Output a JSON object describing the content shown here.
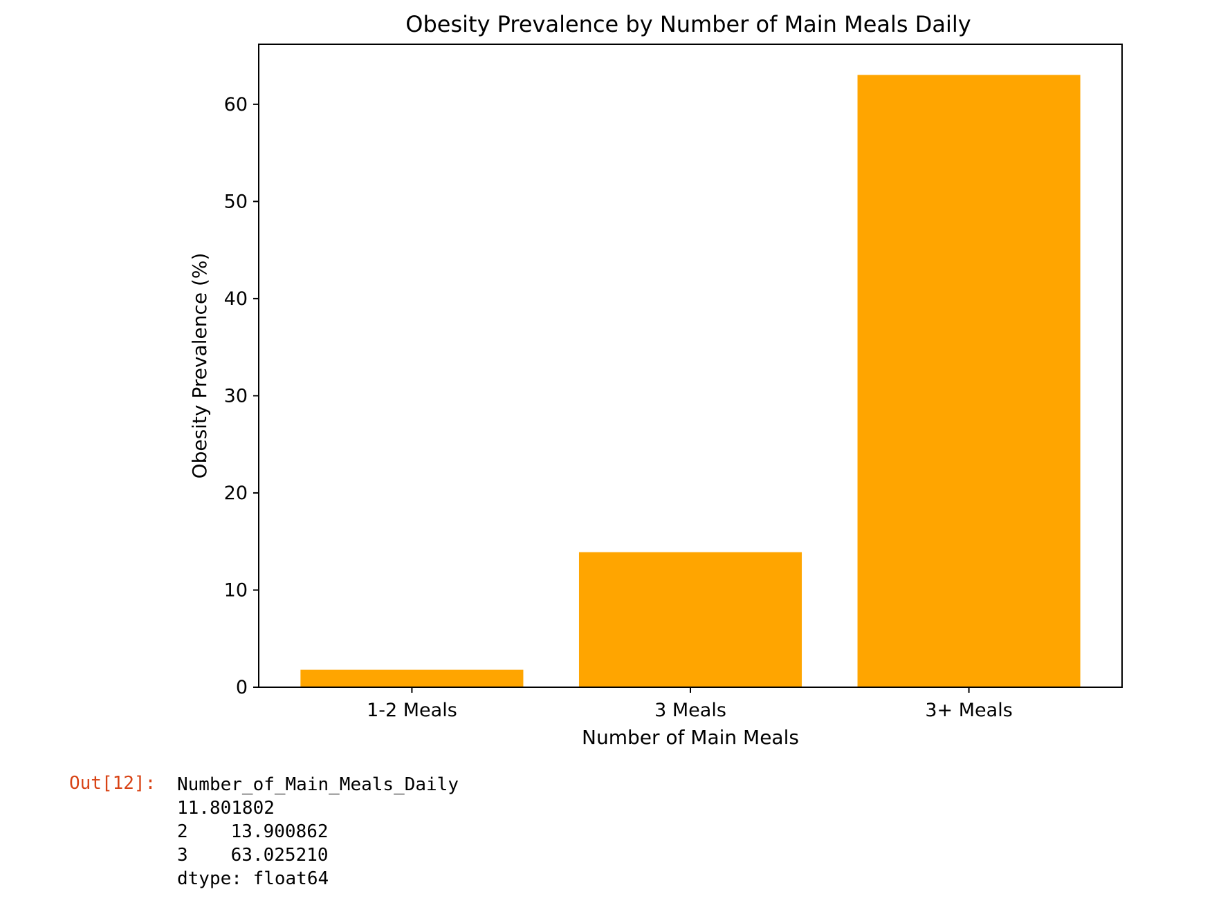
{
  "chart_data": {
    "type": "bar",
    "title": "Obesity Prevalence by Number of Main Meals Daily",
    "xlabel": "Number of Main Meals",
    "ylabel": "Obesity Prevalence (%)",
    "categories": [
      "1-2 Meals",
      "3 Meals",
      "3+ Meals"
    ],
    "values": [
      1.801802,
      13.900862,
      63.02521
    ],
    "yticks": [
      0,
      10,
      20,
      30,
      40,
      50,
      60
    ],
    "ylim": [
      0,
      66.18
    ],
    "bar_color": "#ffa500",
    "grid": false,
    "legend": "none"
  },
  "output": {
    "prompt": "Out[12]:",
    "series_name": "Number_of_Main_Meals_Daily",
    "rows": [
      {
        "index": "1",
        "value": "1.801802"
      },
      {
        "index": "2",
        "value": "13.900862"
      },
      {
        "index": "3",
        "value": "63.025210"
      }
    ],
    "dtype_line": "dtype: float64"
  },
  "colors": {
    "prompt": "#d84315",
    "axes": "#000000"
  }
}
